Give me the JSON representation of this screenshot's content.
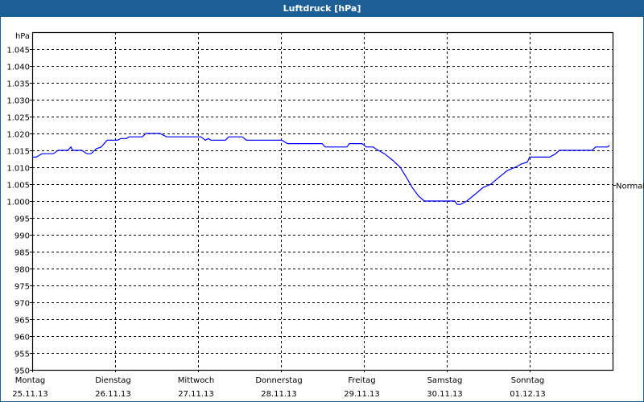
{
  "window": {
    "title": "Luftdruck [hPa]"
  },
  "colors": {
    "titlebar": "#1c5f97",
    "line": "#0000ff",
    "grid": "#000000"
  },
  "chart_data": {
    "type": "line",
    "title": "Luftdruck [hPa]",
    "ylabel": "hPa",
    "xlabel": "",
    "ylim": [
      950,
      1050
    ],
    "xlim_hours": [
      0,
      168
    ],
    "grid": true,
    "yticks": [
      950,
      955,
      960,
      965,
      970,
      975,
      980,
      985,
      990,
      995,
      1000,
      1005,
      1010,
      1015,
      1020,
      1025,
      1030,
      1035,
      1040,
      1045
    ],
    "ytick_labels": [
      "950",
      "955",
      "960",
      "965",
      "970",
      "975",
      "980",
      "985",
      "990",
      "995",
      "1.000",
      "1.005",
      "1.010",
      "1.015",
      "1.020",
      "1.025",
      "1.030",
      "1.035",
      "1.040",
      "1.045"
    ],
    "xticks": [
      {
        "day": "Montag",
        "date": "25.11.13",
        "hour": 0
      },
      {
        "day": "Dienstag",
        "date": "26.11.13",
        "hour": 24
      },
      {
        "day": "Mittwoch",
        "date": "27.11.13",
        "hour": 48
      },
      {
        "day": "Donnerstag",
        "date": "28.11.13",
        "hour": 72
      },
      {
        "day": "Freitag",
        "date": "29.11.13",
        "hour": 96
      },
      {
        "day": "Samstag",
        "date": "30.11.13",
        "hour": 120
      },
      {
        "day": "Sonntag",
        "date": "01.12.13",
        "hour": 144
      }
    ],
    "reference": {
      "label": "Normal",
      "value": 1004.8
    },
    "series": [
      {
        "name": "Luftdruck",
        "points": [
          [
            0,
            1013
          ],
          [
            1.2,
            1013
          ],
          [
            2.8,
            1014
          ],
          [
            6.1,
            1014
          ],
          [
            7.5,
            1015
          ],
          [
            10.3,
            1015
          ],
          [
            11.2,
            1016
          ],
          [
            11.7,
            1015
          ],
          [
            14.4,
            1015
          ],
          [
            15.8,
            1014
          ],
          [
            17,
            1014
          ],
          [
            18.6,
            1015.5
          ],
          [
            20,
            1016
          ],
          [
            21.7,
            1018
          ],
          [
            24.7,
            1018
          ],
          [
            25.6,
            1018.5
          ],
          [
            27.3,
            1018.5
          ],
          [
            28,
            1019
          ],
          [
            31.9,
            1019
          ],
          [
            32.9,
            1020
          ],
          [
            37,
            1020
          ],
          [
            38.9,
            1019
          ],
          [
            48.9,
            1019
          ],
          [
            50.1,
            1018
          ],
          [
            51,
            1018.5
          ],
          [
            51.7,
            1018
          ],
          [
            55.9,
            1018
          ],
          [
            56.9,
            1019
          ],
          [
            60.8,
            1019
          ],
          [
            62,
            1018
          ],
          [
            72.2,
            1018
          ],
          [
            73.9,
            1017
          ],
          [
            83.9,
            1017
          ],
          [
            84.8,
            1016
          ],
          [
            91.1,
            1016
          ],
          [
            91.8,
            1017
          ],
          [
            95.5,
            1017
          ],
          [
            96.7,
            1016
          ],
          [
            98.6,
            1016
          ],
          [
            100.2,
            1015
          ],
          [
            102,
            1014
          ],
          [
            104.4,
            1012
          ],
          [
            106.5,
            1010
          ],
          [
            108.3,
            1007
          ],
          [
            110,
            1004
          ],
          [
            111.8,
            1001.5
          ],
          [
            113.5,
            1000
          ],
          [
            122.3,
            1000
          ],
          [
            123,
            999
          ],
          [
            124,
            999
          ],
          [
            125.8,
            1000
          ],
          [
            128.2,
            1002
          ],
          [
            130.5,
            1004
          ],
          [
            132.8,
            1005
          ],
          [
            135.1,
            1007
          ],
          [
            137.5,
            1009
          ],
          [
            139.8,
            1010
          ],
          [
            141.7,
            1011
          ],
          [
            143.3,
            1011.5
          ],
          [
            144,
            1013
          ],
          [
            149.8,
            1013
          ],
          [
            151.5,
            1014
          ],
          [
            152.6,
            1015
          ],
          [
            162,
            1015
          ],
          [
            163.1,
            1016
          ],
          [
            166.6,
            1016
          ],
          [
            167.1,
            1016.5
          ]
        ]
      }
    ]
  }
}
